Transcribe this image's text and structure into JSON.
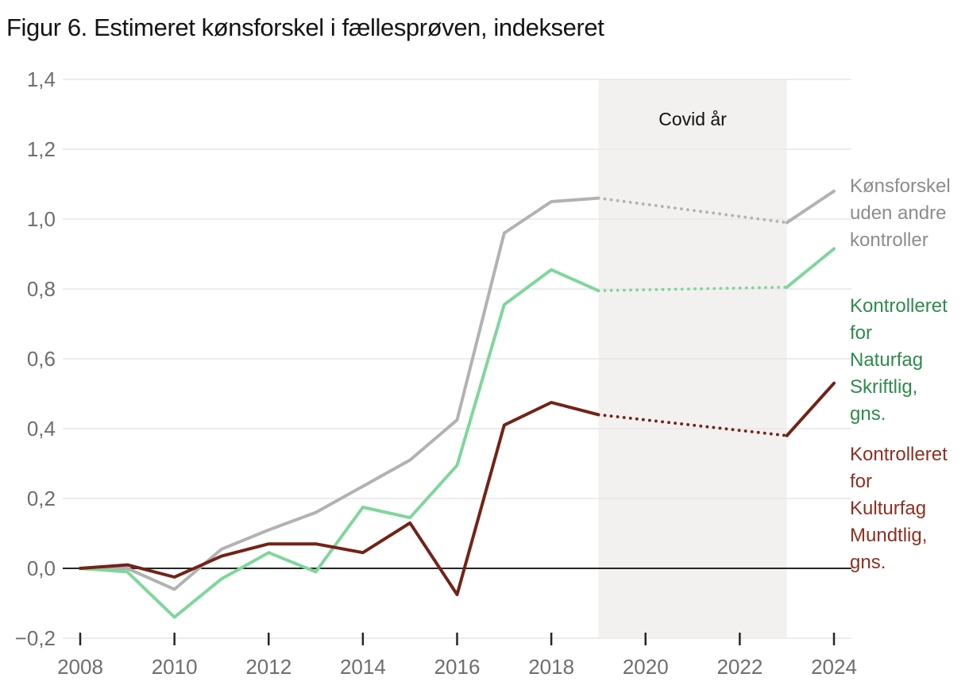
{
  "chart_data": {
    "type": "line",
    "title": "Figur 6. Estimeret kønsforskel i fællesprøven, indekseret",
    "xlabel": "",
    "ylabel": "",
    "x_axis": {
      "range": [
        2008,
        2024
      ],
      "ticks": [
        2008,
        2010,
        2012,
        2014,
        2016,
        2018,
        2020,
        2022,
        2024
      ]
    },
    "y_axis": {
      "range": [
        -0.2,
        1.4
      ],
      "grid": true,
      "ticks": [
        {
          "value": -0.2,
          "label": "−0,2"
        },
        {
          "value": 0.0,
          "label": "0,0"
        },
        {
          "value": 0.2,
          "label": "0,2"
        },
        {
          "value": 0.4,
          "label": "0,4"
        },
        {
          "value": 0.6,
          "label": "0,6"
        },
        {
          "value": 0.8,
          "label": "0,8"
        },
        {
          "value": 1.0,
          "label": "1,0"
        },
        {
          "value": 1.2,
          "label": "1,2"
        },
        {
          "value": 1.4,
          "label": "1,4"
        }
      ]
    },
    "covid_band": {
      "label": "Covid år",
      "from": 2019,
      "to": 2023,
      "color": "#f2f1f0"
    },
    "series": [
      {
        "id": "uncontrolled",
        "label": "Kønsforskel\nuden andre\nkontroller",
        "color": "#b2b2b2",
        "label_color": "#8c8c8c",
        "solid_pre": {
          "years": [
            2008,
            2009,
            2010,
            2011,
            2012,
            2013,
            2014,
            2015,
            2016,
            2017,
            2018,
            2019
          ],
          "values": [
            0.0,
            0.0,
            -0.06,
            0.055,
            0.11,
            0.16,
            0.235,
            0.31,
            0.425,
            0.96,
            1.05,
            1.06
          ]
        },
        "dotted": {
          "years": [
            2019,
            2023
          ],
          "values": [
            1.06,
            0.99
          ]
        },
        "solid_post": {
          "years": [
            2023,
            2024
          ],
          "values": [
            0.99,
            1.08
          ]
        }
      },
      {
        "id": "naturfag",
        "label": "Kontrolleret\nfor\nNaturfag\nSkriftlig,\ngns.",
        "color": "#7fd69b",
        "label_color": "#2e8a4d",
        "solid_pre": {
          "years": [
            2008,
            2009,
            2010,
            2011,
            2012,
            2013,
            2014,
            2015,
            2016,
            2017,
            2018,
            2019
          ],
          "values": [
            0.0,
            -0.01,
            -0.14,
            -0.03,
            0.045,
            -0.01,
            0.175,
            0.145,
            0.295,
            0.755,
            0.855,
            0.795
          ]
        },
        "dotted": {
          "years": [
            2019,
            2023
          ],
          "values": [
            0.795,
            0.805
          ]
        },
        "solid_post": {
          "years": [
            2023,
            2024
          ],
          "values": [
            0.805,
            0.915
          ]
        }
      },
      {
        "id": "kulturfag",
        "label": "Kontrolleret\nfor\nKulturfag\nMundtlig,\ngns.",
        "color": "#722317",
        "label_color": "#8c3021",
        "solid_pre": {
          "years": [
            2008,
            2009,
            2010,
            2011,
            2012,
            2013,
            2014,
            2015,
            2016,
            2017,
            2018,
            2019
          ],
          "values": [
            0.0,
            0.01,
            -0.025,
            0.035,
            0.07,
            0.07,
            0.045,
            0.13,
            -0.075,
            0.41,
            0.475,
            0.44
          ]
        },
        "dotted": {
          "years": [
            2019,
            2023
          ],
          "values": [
            0.44,
            0.38
          ]
        },
        "solid_post": {
          "years": [
            2023,
            2024
          ],
          "values": [
            0.38,
            0.53
          ]
        }
      }
    ]
  }
}
